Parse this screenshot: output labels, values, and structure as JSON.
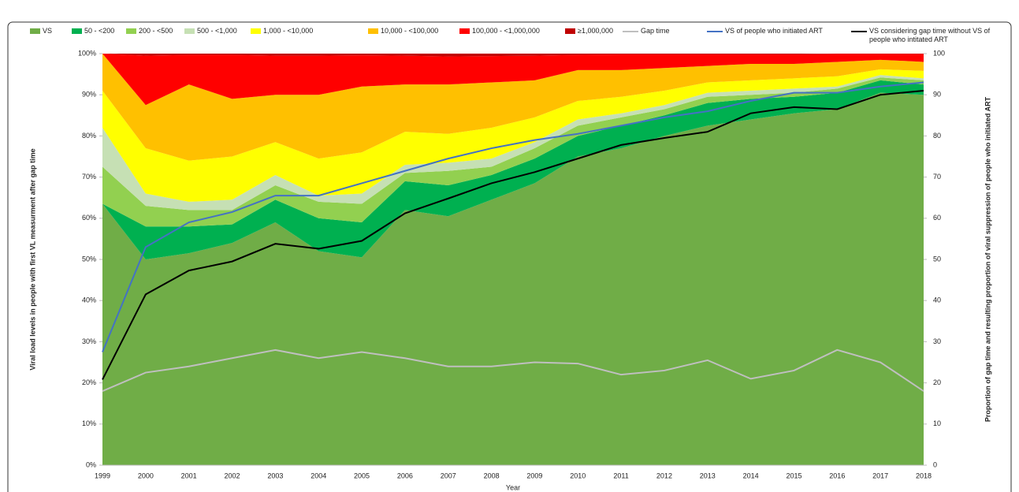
{
  "chart_data": {
    "type": "area",
    "stacked": true,
    "categories": [
      "1999",
      "2000",
      "2001",
      "2002",
      "2003",
      "2004",
      "2005",
      "2006",
      "2007",
      "2008",
      "2009",
      "2010",
      "2011",
      "2012",
      "2013",
      "2014",
      "2015",
      "2016",
      "2017",
      "2018"
    ],
    "x_label": "Year",
    "y_label": "Viral load levels in people with first VL measurment after gap time",
    "y2_label": "Proportion of gap time and resulting proportion of viral suppression of people who initiated ART",
    "ylim": [
      0,
      100
    ],
    "yticks": [
      {
        "value": 0,
        "label": "0%"
      },
      {
        "value": 10,
        "label": "10%"
      },
      {
        "value": 20,
        "label": "20%"
      },
      {
        "value": 30,
        "label": "30%"
      },
      {
        "value": 40,
        "label": "40%"
      },
      {
        "value": 50,
        "label": "50%"
      },
      {
        "value": 60,
        "label": "60%"
      },
      {
        "value": 70,
        "label": "70%"
      },
      {
        "value": 80,
        "label": "80%"
      },
      {
        "value": 90,
        "label": "90%"
      },
      {
        "value": 100,
        "label": "100%"
      }
    ],
    "y2lim": [
      0,
      100
    ],
    "y2ticks": [
      0,
      10,
      20,
      30,
      40,
      50,
      60,
      70,
      80,
      90,
      100
    ],
    "series": [
      {
        "name": "VS",
        "type": "area",
        "color": "#70ad47",
        "values": [
          63.5,
          50,
          51.5,
          54,
          59,
          52,
          50.5,
          62,
          60.5,
          64.5,
          68.5,
          75,
          77,
          80,
          82.5,
          84,
          85.5,
          86.5,
          90.5,
          90
        ]
      },
      {
        "name": "50 - <200",
        "type": "area",
        "color": "#00b050",
        "values": [
          0,
          8,
          6.5,
          4.5,
          5.5,
          8,
          8.5,
          7,
          7.5,
          6,
          6,
          5,
          5.5,
          5,
          5.5,
          5,
          4,
          4,
          3,
          2.5
        ]
      },
      {
        "name": "200 - <500",
        "type": "area",
        "color": "#92d050",
        "values": [
          9,
          5,
          4,
          3.5,
          3.5,
          4,
          4.5,
          2,
          3.5,
          2,
          2.5,
          2.5,
          2,
          1.5,
          1.5,
          1,
          1,
          1,
          0.7,
          1
        ]
      },
      {
        "name": "500 - <1,000",
        "type": "area",
        "color": "#c6e0b4",
        "values": [
          9.5,
          3,
          2,
          2.5,
          2.5,
          1.5,
          2.5,
          2,
          2,
          2,
          1.5,
          1.5,
          1,
          1,
          1,
          1,
          1,
          0.5,
          0.6,
          0.5
        ]
      },
      {
        "name": "1,000 - <10,000",
        "type": "area",
        "color": "#ffff00",
        "values": [
          9,
          11,
          10,
          10.5,
          8,
          9,
          10,
          8,
          7,
          7.5,
          6,
          4.5,
          4,
          3.5,
          2.5,
          2.5,
          2.5,
          2.5,
          1.4,
          1.8
        ]
      },
      {
        "name": "10,000 - <100,000",
        "type": "area",
        "color": "#ffc000",
        "values": [
          9,
          10.5,
          18.5,
          14,
          11.5,
          15.5,
          16,
          11.5,
          12,
          11,
          9,
          7.5,
          6.5,
          5.5,
          4,
          4,
          3.5,
          3.5,
          2.3,
          2.2
        ]
      },
      {
        "name": "100,000 - <1,000,000",
        "type": "area",
        "color": "#ff0000",
        "values": [
          0,
          12,
          7.2,
          10.7,
          9.5,
          9.5,
          7.6,
          7,
          6.8,
          6.4,
          6,
          3.7,
          3.8,
          3.3,
          2.8,
          2.3,
          2.3,
          1.9,
          1.4,
          1.9
        ]
      },
      {
        "name": "≥1,000,000",
        "type": "area",
        "color": "#c00000",
        "values": [
          0,
          0.5,
          0.3,
          0.3,
          0.5,
          0.5,
          0.4,
          0.5,
          0.7,
          0.6,
          0.5,
          0.3,
          0.2,
          0.2,
          0.2,
          0.2,
          0.2,
          0.1,
          0.1,
          0.1
        ]
      },
      {
        "name": "Gap time",
        "type": "line",
        "axis": "y2",
        "color": "#bfbfbf",
        "values": [
          18,
          22.5,
          24,
          26,
          28,
          26,
          27.5,
          26,
          24,
          24,
          25,
          24.7,
          22,
          23,
          25.5,
          21,
          23,
          28,
          25,
          18
        ]
      },
      {
        "name": "VS of people who initiated ART",
        "type": "line",
        "axis": "y2",
        "color": "#4472c4",
        "values": [
          27.5,
          53,
          59,
          61.5,
          65.5,
          65.5,
          68.5,
          71.5,
          74.5,
          77,
          79,
          80.5,
          82.5,
          84.5,
          86,
          88.5,
          90.5,
          90.5,
          92,
          93
        ]
      },
      {
        "name": "VS considering gap time without VS of people who intitated ART",
        "type": "line",
        "axis": "y2",
        "color": "#000000",
        "values": [
          20.8,
          41.5,
          47.3,
          49.5,
          53.8,
          52.6,
          54.5,
          61.2,
          64.8,
          68.5,
          71.2,
          74.5,
          77.8,
          79.5,
          81,
          85.5,
          87,
          86.5,
          90,
          91
        ]
      }
    ]
  }
}
